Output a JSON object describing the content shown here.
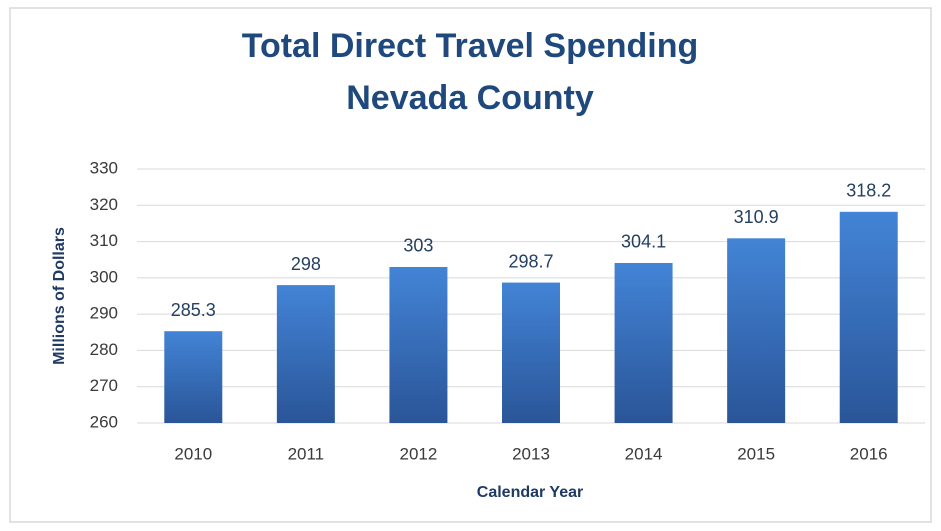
{
  "chart_data": {
    "type": "bar",
    "title": [
      "Total Direct Travel Spending",
      "Nevada County"
    ],
    "x_label": "Calendar Year",
    "y_label": "Millions of Dollars",
    "categories": [
      "2010",
      "2011",
      "2012",
      "2013",
      "2014",
      "2015",
      "2016"
    ],
    "values": [
      285.3,
      298,
      303,
      298.7,
      304.1,
      310.9,
      318.2
    ],
    "color": "#3a75c4",
    "ylim": [
      260,
      330
    ],
    "yticks": [
      260,
      270,
      280,
      290,
      300,
      310,
      320,
      330
    ],
    "grid": true
  }
}
